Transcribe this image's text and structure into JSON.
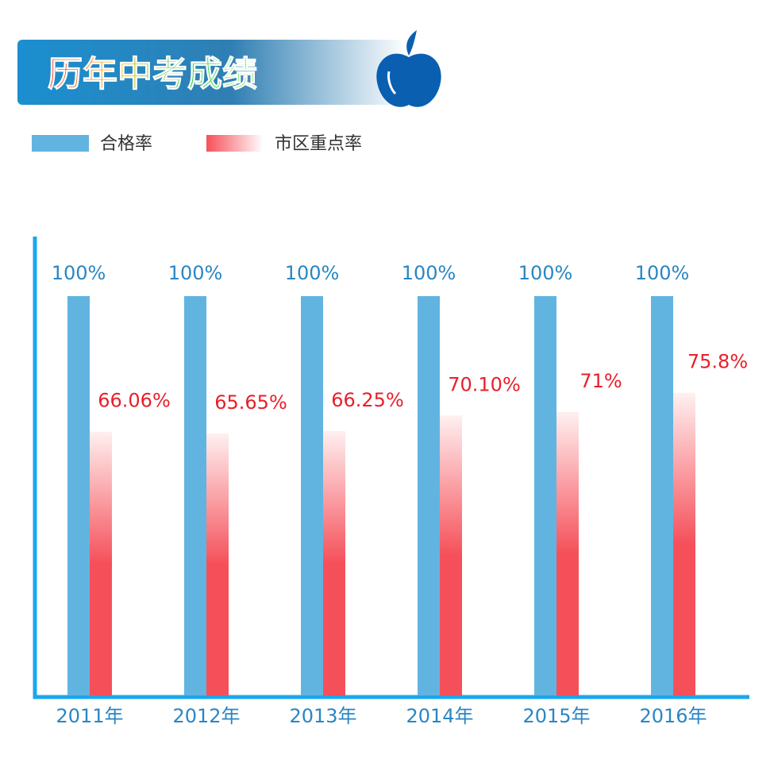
{
  "chart_data": {
    "type": "bar",
    "title": "历年中考成绩",
    "categories": [
      "2011年",
      "2012年",
      "2013年",
      "2014年",
      "2015年",
      "2016年"
    ],
    "series": [
      {
        "name": "合格率",
        "color": "#62b4e0",
        "values": [
          100,
          100,
          100,
          100,
          100,
          100
        ],
        "value_labels": [
          "100%",
          "100%",
          "100%",
          "100%",
          "100%",
          "100%"
        ]
      },
      {
        "name": "市区重点率",
        "color": "#f5505a",
        "values": [
          66.06,
          65.65,
          66.25,
          70.1,
          71,
          75.8
        ],
        "value_labels": [
          "66.06%",
          "65.65%",
          "66.25%",
          "70.10%",
          "71%",
          "75.8%"
        ]
      }
    ]
  }
}
